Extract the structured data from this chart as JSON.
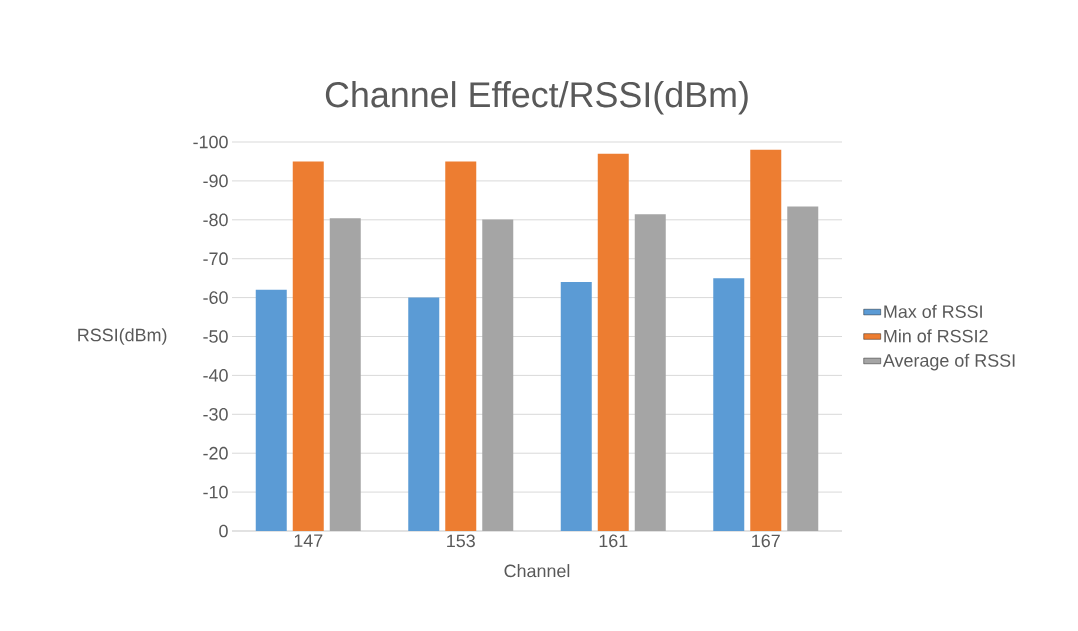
{
  "chart_data": {
    "type": "bar",
    "title": "Channel Effect/RSSI(dBm)",
    "xlabel": "Channel",
    "ylabel": "RSSI(dBm)",
    "categories": [
      "147",
      "153",
      "161",
      "167"
    ],
    "series": [
      {
        "name": "Max of RSSI",
        "color": "#5b9bd5",
        "values": [
          -62,
          -60,
          -64,
          -65
        ]
      },
      {
        "name": "Min of RSSI2",
        "color": "#ed7d31",
        "values": [
          -95,
          -95,
          -97,
          -98
        ]
      },
      {
        "name": "Average of RSSI",
        "color": "#a5a5a5",
        "values": [
          -80.4,
          -80.1,
          -81.4,
          -83.4
        ]
      }
    ],
    "ylim": [
      0,
      -100
    ],
    "yticks": [
      0,
      -10,
      -20,
      -30,
      -40,
      -50,
      -60,
      -70,
      -80,
      -90,
      -100
    ],
    "grid": "y",
    "legend": "right"
  }
}
